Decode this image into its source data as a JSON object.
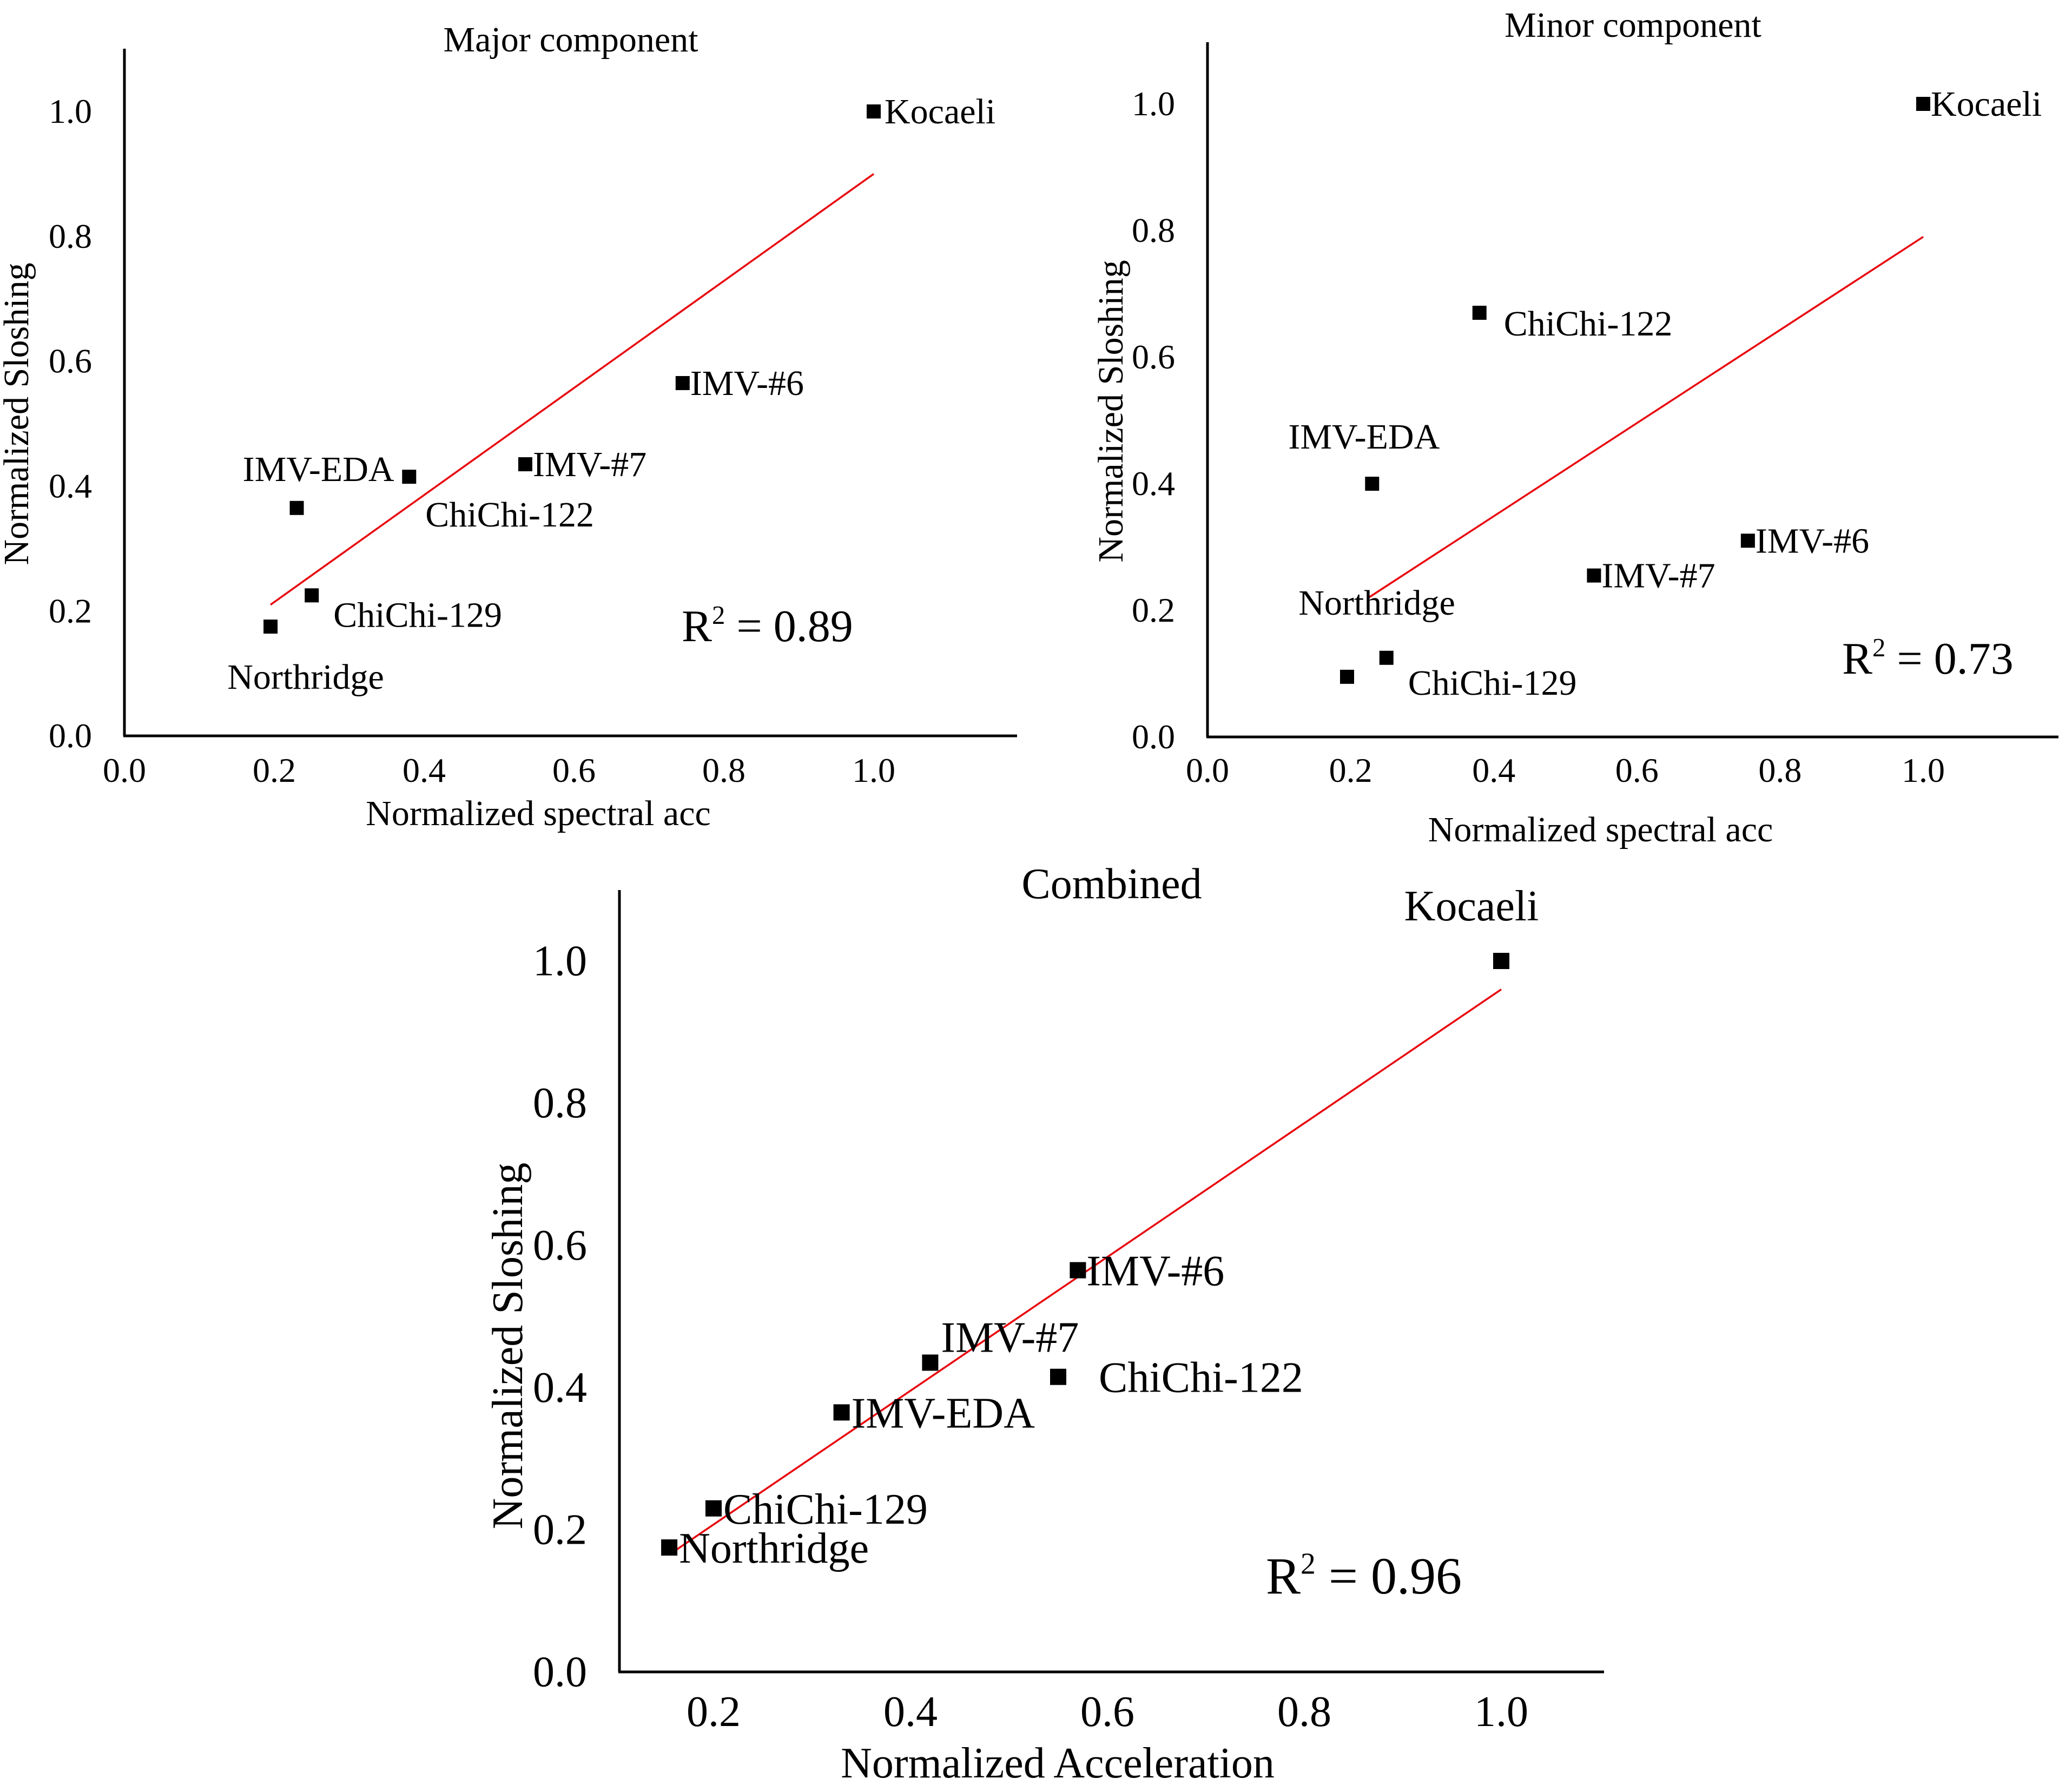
{
  "colors": {
    "fit_line": "#e8000b",
    "marker": "#000000",
    "axis": "#000000"
  },
  "chart_data": [
    {
      "type": "scatter",
      "title": "Major component",
      "xlabel": "Normalized spectral acc",
      "ylabel": "Normalized Sloshing",
      "xlim": [
        0.0,
        1.19
      ],
      "ylim": [
        0.0,
        1.1
      ],
      "xticks": [
        "0.0",
        "0.2",
        "0.4",
        "0.6",
        "0.8",
        "1.0"
      ],
      "yticks": [
        "0.0",
        "0.2",
        "0.4",
        "0.6",
        "0.8",
        "1.0"
      ],
      "points": [
        {
          "label": "Kocaeli",
          "x": 1.0,
          "y": 1.0
        },
        {
          "label": "IMV-#6",
          "x": 0.745,
          "y": 0.565
        },
        {
          "label": "IMV-#7",
          "x": 0.535,
          "y": 0.435
        },
        {
          "label": "ChiChi-122",
          "x": 0.38,
          "y": 0.415
        },
        {
          "label": "IMV-EDA",
          "x": 0.23,
          "y": 0.365
        },
        {
          "label": "ChiChi-129",
          "x": 0.25,
          "y": 0.225
        },
        {
          "label": "Northridge",
          "x": 0.195,
          "y": 0.175
        }
      ],
      "fit": {
        "x": [
          0.195,
          1.0
        ],
        "y": [
          0.21,
          0.9
        ]
      },
      "r2_prefix": "R",
      "r2_sup": "2",
      "r2_text": " = 0.89"
    },
    {
      "type": "scatter",
      "title": "Minor component",
      "xlabel": "Normalized spectral acc",
      "ylabel": "Normalized Sloshing",
      "xlim": [
        0.0,
        1.19
      ],
      "ylim": [
        0.0,
        1.1
      ],
      "xticks": [
        "0.0",
        "0.2",
        "0.4",
        "0.6",
        "0.8",
        "1.0"
      ],
      "yticks": [
        "0.0",
        "0.2",
        "0.4",
        "0.6",
        "0.8",
        "1.0"
      ],
      "points": [
        {
          "label": "Kocaeli",
          "x": 1.0,
          "y": 1.0
        },
        {
          "label": "ChiChi-122",
          "x": 0.38,
          "y": 0.67
        },
        {
          "label": "IMV-EDA",
          "x": 0.23,
          "y": 0.4
        },
        {
          "label": "IMV-#6",
          "x": 0.755,
          "y": 0.31
        },
        {
          "label": "IMV-#7",
          "x": 0.54,
          "y": 0.255
        },
        {
          "label": "ChiChi-129",
          "x": 0.25,
          "y": 0.125
        },
        {
          "label": "Northridge",
          "x": 0.195,
          "y": 0.095
        }
      ],
      "fit": {
        "x": [
          0.225,
          1.0
        ],
        "y": [
          0.22,
          0.79
        ]
      },
      "r2_prefix": "R",
      "r2_sup": "2",
      "r2_text": " = 0.73"
    },
    {
      "type": "scatter",
      "title": "Combined",
      "xlabel": "Normalized Acceleration",
      "ylabel": "Normalized Sloshing",
      "xlim": [
        0.1,
        1.1
      ],
      "ylim": [
        0.0,
        1.1
      ],
      "xticks": [
        "0.2",
        "0.4",
        "0.6",
        "0.8",
        "1.0"
      ],
      "yticks": [
        "0.0",
        "0.2",
        "0.4",
        "0.6",
        "0.8",
        "1.0"
      ],
      "points": [
        {
          "label": "Kocaeli",
          "x": 1.0,
          "y": 1.0
        },
        {
          "label": "IMV-#6",
          "x": 0.57,
          "y": 0.565
        },
        {
          "label": "IMV-#7",
          "x": 0.42,
          "y": 0.435
        },
        {
          "label": "ChiChi-122",
          "x": 0.55,
          "y": 0.415
        },
        {
          "label": "IMV-EDA",
          "x": 0.33,
          "y": 0.365
        },
        {
          "label": "ChiChi-129",
          "x": 0.2,
          "y": 0.23
        },
        {
          "label": "Northridge",
          "x": 0.155,
          "y": 0.175
        }
      ],
      "fit": {
        "x": [
          0.155,
          1.0
        ],
        "y": [
          0.165,
          0.96
        ]
      },
      "r2_prefix": "R",
      "r2_sup": "2",
      "r2_text": " = 0.96"
    }
  ]
}
